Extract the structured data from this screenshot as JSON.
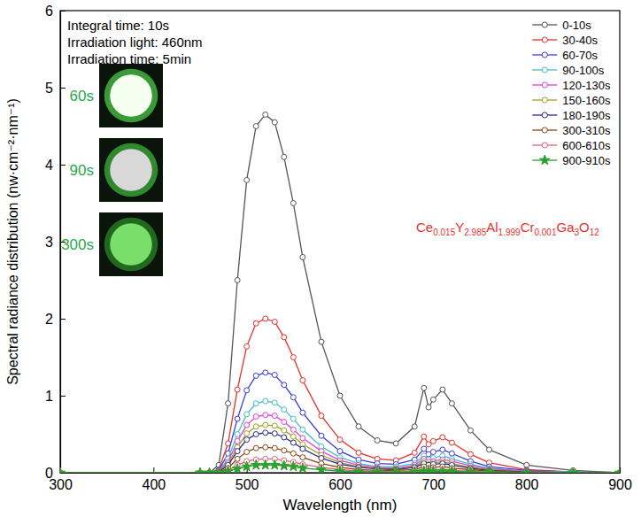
{
  "chart_data": {
    "type": "line",
    "x_label": "Wavelength (nm)",
    "y_label": "Spectral radiance distribution (nw·cm⁻²·nm⁻¹)",
    "annotations": [
      "Integral time: 10s",
      "Irradiation light: 460nm",
      "Irradiation time: 5min",
      "Ce0.015Y2.985Al1.999Cr0.001Ga3O12"
    ],
    "insets": [
      "60s",
      "90s",
      "300s"
    ],
    "xlim": [
      300,
      900
    ],
    "ylim": [
      0,
      6
    ],
    "xticks": [
      300,
      400,
      500,
      600,
      700,
      800,
      900
    ],
    "yticks": [
      0,
      1,
      2,
      3,
      4,
      5,
      6
    ],
    "legend": "upper right",
    "marker": "circle",
    "x": [
      300,
      450,
      460,
      470,
      480,
      490,
      500,
      510,
      520,
      530,
      540,
      550,
      560,
      580,
      600,
      620,
      640,
      660,
      680,
      690,
      695,
      700,
      710,
      720,
      740,
      760,
      800,
      850,
      900
    ],
    "series": [
      {
        "name": "0-10s",
        "color": "#555555",
        "values": [
          0,
          0,
          0,
          0.1,
          0.9,
          2.5,
          3.8,
          4.5,
          4.65,
          4.55,
          4.1,
          3.5,
          2.8,
          1.7,
          1.0,
          0.6,
          0.42,
          0.38,
          0.6,
          1.1,
          0.85,
          0.95,
          1.08,
          0.9,
          0.55,
          0.3,
          0.1,
          0.03,
          0
        ]
      },
      {
        "name": "30-40s",
        "color": "#e8312b",
        "values": [
          0,
          0,
          0,
          0.04,
          0.38,
          1.08,
          1.64,
          1.94,
          2.0,
          1.96,
          1.76,
          1.5,
          1.2,
          0.74,
          0.43,
          0.26,
          0.18,
          0.16,
          0.26,
          0.47,
          0.37,
          0.41,
          0.46,
          0.39,
          0.24,
          0.13,
          0.04,
          0.01,
          0
        ]
      },
      {
        "name": "60-70s",
        "color": "#3b3bdc",
        "values": [
          0,
          0,
          0,
          0.03,
          0.25,
          0.7,
          1.07,
          1.26,
          1.3,
          1.27,
          1.14,
          0.98,
          0.78,
          0.48,
          0.28,
          0.17,
          0.12,
          0.11,
          0.17,
          0.31,
          0.24,
          0.27,
          0.3,
          0.25,
          0.15,
          0.08,
          0.03,
          0.01,
          0
        ]
      },
      {
        "name": "90-100s",
        "color": "#40c0c0",
        "values": [
          0,
          0,
          0,
          0.02,
          0.18,
          0.5,
          0.76,
          0.9,
          0.93,
          0.91,
          0.82,
          0.7,
          0.56,
          0.34,
          0.2,
          0.12,
          0.08,
          0.08,
          0.12,
          0.22,
          0.17,
          0.19,
          0.22,
          0.18,
          0.11,
          0.06,
          0.02,
          0.01,
          0
        ]
      },
      {
        "name": "120-130s",
        "color": "#e040e0",
        "values": [
          0,
          0,
          0,
          0.02,
          0.14,
          0.41,
          0.62,
          0.73,
          0.75,
          0.74,
          0.66,
          0.56,
          0.45,
          0.28,
          0.16,
          0.1,
          0.07,
          0.06,
          0.1,
          0.18,
          0.14,
          0.15,
          0.17,
          0.15,
          0.09,
          0.05,
          0.02,
          0,
          0
        ]
      },
      {
        "name": "150-160s",
        "color": "#a0a020",
        "values": [
          0,
          0,
          0,
          0.01,
          0.12,
          0.33,
          0.51,
          0.6,
          0.62,
          0.61,
          0.55,
          0.47,
          0.37,
          0.23,
          0.13,
          0.08,
          0.06,
          0.05,
          0.08,
          0.15,
          0.11,
          0.13,
          0.14,
          0.12,
          0.07,
          0.04,
          0.01,
          0,
          0
        ]
      },
      {
        "name": "180-190s",
        "color": "#2a2a8a",
        "values": [
          0,
          0,
          0,
          0.01,
          0.1,
          0.28,
          0.43,
          0.5,
          0.52,
          0.51,
          0.46,
          0.39,
          0.31,
          0.19,
          0.11,
          0.07,
          0.05,
          0.04,
          0.07,
          0.12,
          0.1,
          0.11,
          0.12,
          0.1,
          0.06,
          0.03,
          0.01,
          0,
          0
        ]
      },
      {
        "name": "300-310s",
        "color": "#8b4513",
        "values": [
          0,
          0,
          0,
          0.01,
          0.06,
          0.18,
          0.27,
          0.32,
          0.33,
          0.32,
          0.29,
          0.25,
          0.2,
          0.12,
          0.07,
          0.04,
          0.03,
          0.03,
          0.04,
          0.08,
          0.06,
          0.07,
          0.08,
          0.06,
          0.04,
          0.02,
          0.01,
          0,
          0
        ]
      },
      {
        "name": "600-610s",
        "color": "#e0607a",
        "values": [
          0,
          0,
          0,
          0,
          0.03,
          0.1,
          0.15,
          0.17,
          0.18,
          0.18,
          0.16,
          0.14,
          0.11,
          0.07,
          0.04,
          0.02,
          0.02,
          0.01,
          0.02,
          0.04,
          0.03,
          0.04,
          0.04,
          0.03,
          0.02,
          0.01,
          0,
          0,
          0
        ]
      },
      {
        "name": "900-910s",
        "color": "#2ca02c",
        "marker": "star",
        "values": [
          0,
          0,
          0,
          0,
          0.02,
          0.05,
          0.08,
          0.1,
          0.1,
          0.1,
          0.09,
          0.08,
          0.06,
          0.04,
          0.02,
          0.01,
          0.01,
          0.01,
          0.01,
          0.02,
          0.02,
          0.02,
          0.02,
          0.02,
          0.01,
          0.01,
          0,
          0,
          0
        ]
      }
    ]
  }
}
